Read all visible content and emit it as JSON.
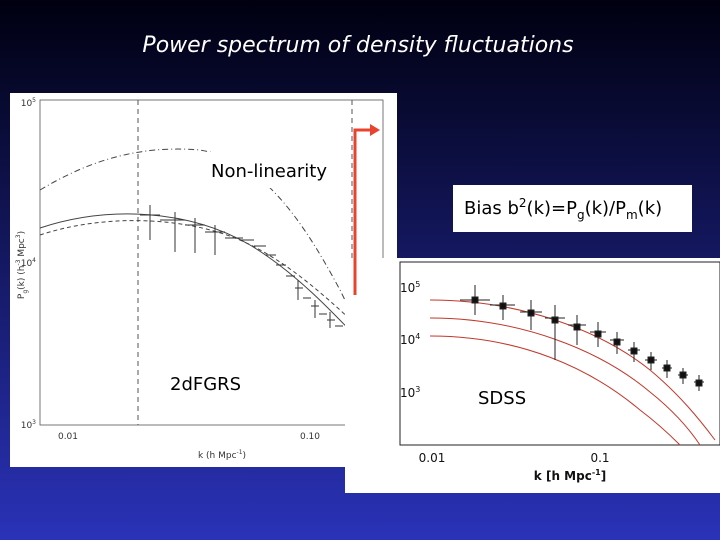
{
  "title": "Power spectrum of density fluctuations",
  "left_plot": {
    "label": "2dFGRS",
    "yticks": [
      {
        "base": "10",
        "exp": "5"
      },
      {
        "base": "10",
        "exp": "4"
      },
      {
        "base": "10",
        "exp": "3"
      }
    ],
    "xticks": [
      "0.01",
      "0.10"
    ],
    "x_label": [
      "k (h Mpc",
      "-1",
      ")"
    ],
    "y_label": [
      "P",
      "g",
      "(k) (h",
      "-3",
      " Mpc",
      "3",
      ")"
    ]
  },
  "right_plot": {
    "label": "SDSS",
    "yticks": [
      {
        "base": "10",
        "exp": "5"
      },
      {
        "base": "10",
        "exp": "4"
      },
      {
        "base": "10",
        "exp": "3"
      }
    ],
    "xticks": [
      "0.01",
      "0.1"
    ],
    "x_label": [
      "k [h Mpc",
      "-1",
      "]"
    ]
  },
  "annotations": {
    "nonlinearity": "Non-linearity",
    "bias": [
      "Bias b",
      "2",
      "(k)=P",
      "g",
      "(k)/P",
      "m",
      "(k)"
    ]
  }
}
